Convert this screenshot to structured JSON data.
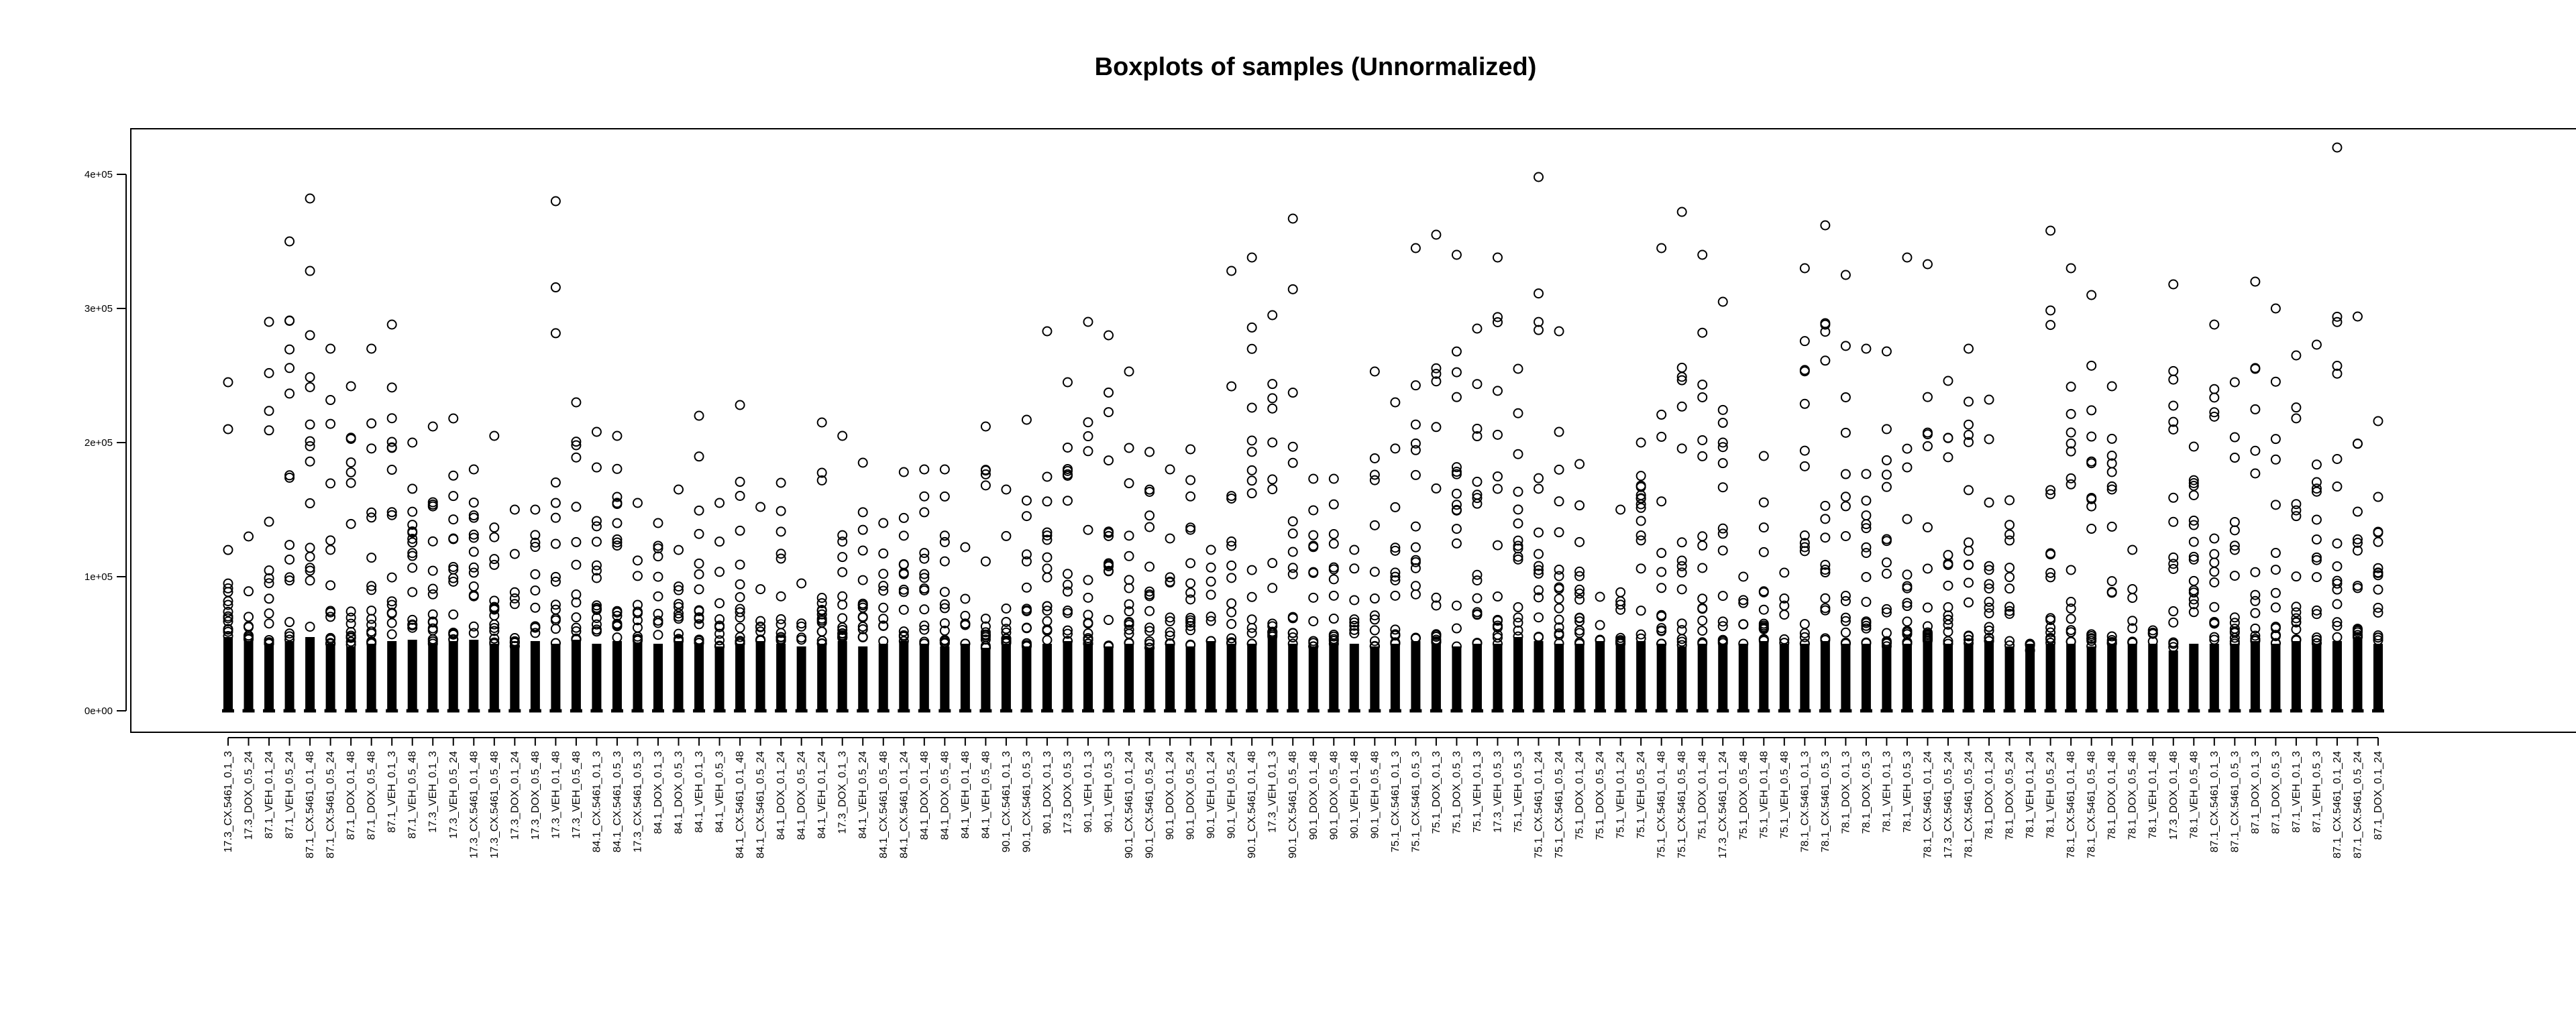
{
  "chart_data": {
    "type": "boxplot",
    "title": "Boxplots of samples (Unnormalized)",
    "xlabel": "",
    "ylabel": "",
    "ylim": [
      0,
      430000
    ],
    "y_ticks": [
      {
        "value": 0,
        "label": "0e+00"
      },
      {
        "value": 100000,
        "label": "1e+05"
      },
      {
        "value": 200000,
        "label": "2e+05"
      },
      {
        "value": 300000,
        "label": "3e+05"
      },
      {
        "value": 400000,
        "label": "4e+05"
      }
    ],
    "categories": [
      "17.3_CX.5461_0.1_3",
      "17.3_DOX_0.5_24",
      "87.1_VEH_0.1_24",
      "87.1_VEH_0.5_24",
      "87.1_CX.5461_0.1_48",
      "87.1_CX.5461_0.5_24",
      "87.1_DOX_0.1_48",
      "87.1_DOX_0.5_48",
      "87.1_VEH_0.1_3",
      "87.1_VEH_0.5_48",
      "17.3_VEH_0.1_3",
      "17.3_VEH_0.5_24",
      "17.3_CX.5461_0.1_48",
      "17.3_CX.5461_0.5_48",
      "17.3_DOX_0.1_24",
      "17.3_DOX_0.5_48",
      "17.3_VEH_0.1_48",
      "17.3_VEH_0.5_48",
      "84.1_CX.5461_0.1_3",
      "84.1_CX.5461_0.5_3",
      "17.3_CX.5461_0.5_3",
      "84.1_DOX_0.1_3",
      "84.1_DOX_0.5_3",
      "84.1_VEH_0.1_3",
      "84.1_VEH_0.5_3",
      "84.1_CX.5461_0.1_48",
      "84.1_CX.5461_0.5_24",
      "84.1_DOX_0.1_24",
      "84.1_DOX_0.5_24",
      "84.1_VEH_0.1_24",
      "17.3_DOX_0.1_3",
      "84.1_VEH_0.5_24",
      "84.1_CX.5461_0.5_48",
      "84.1_CX.5461_0.1_24",
      "84.1_DOX_0.1_48",
      "84.1_DOX_0.5_48",
      "84.1_VEH_0.1_48",
      "84.1_VEH_0.5_48",
      "90.1_CX.5461_0.1_3",
      "90.1_CX.5461_0.5_3",
      "90.1_DOX_0.1_3",
      "17.3_DOX_0.5_3",
      "90.1_VEH_0.1_3",
      "90.1_VEH_0.5_3",
      "90.1_CX.5461_0.1_24",
      "90.1_CX.5461_0.5_24",
      "90.1_DOX_0.1_24",
      "90.1_DOX_0.5_24",
      "90.1_VEH_0.1_24",
      "90.1_VEH_0.5_24",
      "90.1_CX.5461_0.1_48",
      "17.3_VEH_0.1_3",
      "90.1_CX.5461_0.5_48",
      "90.1_DOX_0.1_48",
      "90.1_DOX_0.5_48",
      "90.1_VEH_0.1_48",
      "90.1_VEH_0.5_48",
      "75.1_CX.5461_0.1_3",
      "75.1_CX.5461_0.5_3",
      "75.1_DOX_0.1_3",
      "75.1_DOX_0.5_3",
      "75.1_VEH_0.1_3",
      "17.3_VEH_0.5_3",
      "75.1_VEH_0.5_3",
      "75.1_CX.5461_0.1_24",
      "75.1_CX.5461_0.5_24",
      "75.1_DOX_0.1_24",
      "75.1_DOX_0.5_24",
      "75.1_VEH_0.1_24",
      "75.1_VEH_0.5_24",
      "75.1_CX.5461_0.1_48",
      "75.1_CX.5461_0.5_48",
      "75.1_DOX_0.1_48",
      "17.3_CX.5461_0.1_24",
      "75.1_DOX_0.5_48",
      "75.1_VEH_0.1_48",
      "75.1_VEH_0.5_48",
      "78.1_CX.5461_0.1_3",
      "78.1_CX.5461_0.5_3",
      "78.1_DOX_0.1_3",
      "78.1_DOX_0.5_3",
      "78.1_VEH_0.1_3",
      "78.1_VEH_0.5_3",
      "78.1_CX.5461_0.1_24",
      "17.3_CX.5461_0.5_24",
      "78.1_CX.5461_0.5_24",
      "78.1_DOX_0.1_24",
      "78.1_DOX_0.5_24",
      "78.1_VEH_0.1_24",
      "78.1_VEH_0.5_24",
      "78.1_CX.5461_0.1_48",
      "78.1_CX.5461_0.5_48",
      "78.1_DOX_0.1_48",
      "78.1_DOX_0.5_48",
      "78.1_VEH_0.1_48",
      "17.3_DOX_0.1_48",
      "78.1_VEH_0.5_48",
      "87.1_CX.5461_0.1_3",
      "87.1_CX.5461_0.5_3",
      "87.1_DOX_0.1_3",
      "87.1_DOX_0.5_3",
      "87.1_VEH_0.1_3",
      "87.1_VEH_0.5_3",
      "87.1_CX.5461_0.1_24",
      "87.1_CX.5461_0.5_24",
      "87.1_DOX_0.1_24"
    ],
    "series": [
      {
        "name": "upper_whisker",
        "values": [
          55000,
          52000,
          50000,
          52000,
          55000,
          50000,
          48000,
          50000,
          52000,
          53000,
          50000,
          52000,
          53000,
          50000,
          48000,
          52000,
          50000,
          53000,
          50000,
          52000,
          51000,
          50000,
          52000,
          50000,
          48000,
          50000,
          52000,
          50000,
          48000,
          50000,
          52000,
          48000,
          50000,
          52000,
          50000,
          48000,
          50000,
          47000,
          50000,
          48000,
          50000,
          52000,
          50000,
          48000,
          50000,
          47000,
          50000,
          48000,
          52000,
          50000,
          50000,
          55000,
          50000,
          48000,
          50000,
          50000,
          48000,
          50000,
          52000,
          50000,
          48000,
          50000,
          50000,
          55000,
          52000,
          50000,
          50000,
          52000,
          50000,
          52000,
          50000,
          48000,
          50000,
          50000,
          50000,
          52000,
          50000,
          50000,
          52000,
          50000,
          50000,
          48000,
          50000,
          52000,
          50000,
          50000,
          52000,
          48000,
          50000,
          50000,
          50000,
          48000,
          50000,
          50000,
          50000,
          45000,
          50000,
          50000,
          50000,
          52000,
          50000,
          52000,
          50000,
          52000,
          55000,
          50000
        ]
      },
      {
        "name": "outliers_max",
        "values": [
          245000,
          130000,
          290000,
          350000,
          382000,
          270000,
          242000,
          270000,
          288000,
          200000,
          212000,
          218000,
          180000,
          205000,
          150000,
          150000,
          380000,
          230000,
          208000,
          205000,
          155000,
          140000,
          165000,
          220000,
          155000,
          228000,
          152000,
          170000,
          95000,
          215000,
          205000,
          185000,
          140000,
          178000,
          180000,
          180000,
          122000,
          212000,
          165000,
          217000,
          283000,
          245000,
          290000,
          280000,
          253000,
          193000,
          180000,
          195000,
          120000,
          328000,
          338000,
          295000,
          367000,
          173000,
          173000,
          120000,
          253000,
          230000,
          345000,
          355000,
          340000,
          285000,
          338000,
          255000,
          398000,
          283000,
          184000,
          85000,
          150000,
          200000,
          345000,
          372000,
          340000,
          305000,
          100000,
          190000,
          103000,
          330000,
          362000,
          325000,
          270000,
          268000,
          338000,
          333000,
          246000,
          270000,
          232000,
          157000,
          45000,
          358000,
          330000,
          310000,
          242000,
          120000,
          60000,
          318000,
          197000,
          288000,
          245000,
          320000,
          300000,
          265000,
          273000,
          420000,
          294000,
          216000
        ]
      }
    ]
  }
}
